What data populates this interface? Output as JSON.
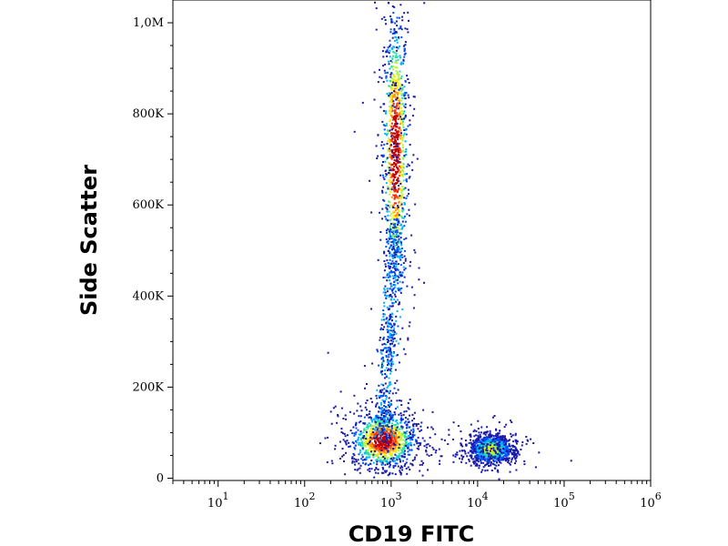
{
  "chart_data": {
    "type": "scatter",
    "subtype": "flow-cytometry-density-dot-plot",
    "title": "",
    "xlabel": "CD19 FITC",
    "ylabel": "Side Scatter",
    "x_scale": "log",
    "xlim": [
      3,
      1000000
    ],
    "ylim": [
      -5000,
      1050000
    ],
    "x_ticks": [
      {
        "value": 10,
        "base": "10",
        "exp": "1"
      },
      {
        "value": 100,
        "base": "10",
        "exp": "2"
      },
      {
        "value": 1000,
        "base": "10",
        "exp": "3"
      },
      {
        "value": 10000,
        "base": "10",
        "exp": "4"
      },
      {
        "value": 100000,
        "base": "10",
        "exp": "5"
      },
      {
        "value": 1000000,
        "base": "10",
        "exp": "6"
      }
    ],
    "y_ticks": [
      {
        "value": 0,
        "label": "0"
      },
      {
        "value": 200000,
        "label": "200K"
      },
      {
        "value": 400000,
        "label": "400K"
      },
      {
        "value": 600000,
        "label": "600K"
      },
      {
        "value": 800000,
        "label": "800K"
      },
      {
        "value": 1000000,
        "label": "1,0M"
      }
    ],
    "grid": false,
    "legend": "none",
    "density_colors": [
      "#1a1aa8",
      "#0050ff",
      "#00b4ff",
      "#27e0a0",
      "#b4f23c",
      "#ffee00",
      "#ff9000",
      "#ff2a00",
      "#c00000"
    ],
    "populations": [
      {
        "name": "",
        "x_center": 1100,
        "y_center": 720000,
        "x_log_spread": 0.07,
        "y_spread": 150000,
        "peak_density": 1.0
      },
      {
        "name": "",
        "x_center": 800,
        "y_center": 85000,
        "x_log_spread": 0.18,
        "y_spread": 30000,
        "peak_density": 1.0
      },
      {
        "name": "",
        "x_center": 14000,
        "y_center": 65000,
        "x_log_spread": 0.12,
        "y_spread": 15000,
        "peak_density": 0.55
      }
    ]
  }
}
